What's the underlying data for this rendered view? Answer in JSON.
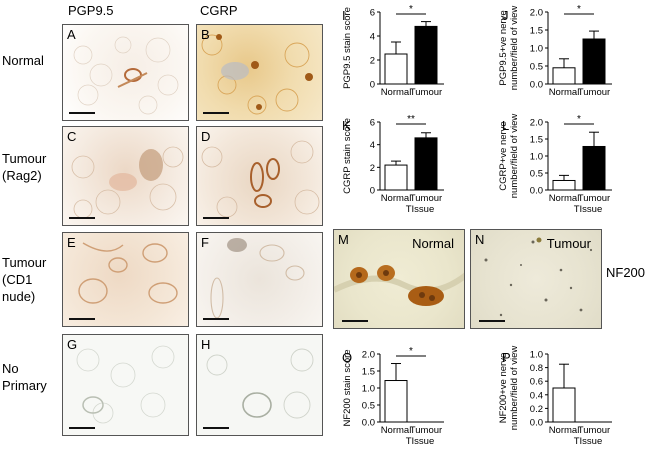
{
  "columns": {
    "pgp": "PGP9.5",
    "cgrp": "CGRP"
  },
  "rows": {
    "normal": "Normal",
    "tumour_rag2": [
      "Tumour",
      "(Rag2)"
    ],
    "tumour_cd1": [
      "Tumour",
      "(CD1",
      "nude)"
    ],
    "no_primary": [
      "No",
      "Primary"
    ]
  },
  "micro_panels": {
    "A": "A",
    "B": "B",
    "C": "C",
    "D": "D",
    "E": "E",
    "F": "F",
    "G": "G",
    "H": "H",
    "M": {
      "letter": "M",
      "label": "Normal"
    },
    "N": {
      "letter": "N",
      "label": "Tumour"
    }
  },
  "nf200_label": "NF200",
  "colors": {
    "bar_normal": "#ffffff",
    "bar_tumour": "#000000",
    "stain": "#c8862e",
    "dab_dark": "#7a3e10"
  },
  "chart_data": [
    {
      "id": "I",
      "type": "bar",
      "categories": [
        "Normal",
        "Tumour"
      ],
      "values": [
        2.5,
        4.8
      ],
      "errors": [
        1.0,
        0.4
      ],
      "ylabel": "PGP9.5 stain score",
      "xlabel": "",
      "ylim": [
        0,
        6
      ],
      "yticks": [
        "0",
        "2",
        "4",
        "6"
      ],
      "significance": "*"
    },
    {
      "id": "J",
      "type": "bar",
      "categories": [
        "Normal",
        "Tumour"
      ],
      "values": [
        0.45,
        1.25
      ],
      "errors": [
        0.25,
        0.22
      ],
      "ylabel": [
        "PGP9.5+ve nerve",
        "number/field of view"
      ],
      "xlabel": "",
      "ylim": [
        0,
        2.0
      ],
      "yticks": [
        "0.0",
        "0.5",
        "1.0",
        "1.5",
        "2.0"
      ],
      "significance": "*"
    },
    {
      "id": "K",
      "type": "bar",
      "categories": [
        "Normal",
        "Tumour"
      ],
      "values": [
        2.2,
        4.6
      ],
      "errors": [
        0.35,
        0.45
      ],
      "ylabel": "CGRP stain score",
      "xlabel": "TIssue",
      "ylim": [
        0,
        6
      ],
      "yticks": [
        "0",
        "2",
        "4",
        "6"
      ],
      "significance": "**"
    },
    {
      "id": "L",
      "type": "bar",
      "categories": [
        "Normal",
        "Tumour"
      ],
      "values": [
        0.28,
        1.28
      ],
      "errors": [
        0.15,
        0.42
      ],
      "ylabel": [
        "CGRP+ve nerve",
        "number/field of view"
      ],
      "xlabel": "TIssue",
      "ylim": [
        0,
        2.0
      ],
      "yticks": [
        "0.0",
        "0.5",
        "1.0",
        "1.5",
        "2.0"
      ],
      "significance": "*"
    },
    {
      "id": "O",
      "type": "bar",
      "categories": [
        "Normal",
        "Tumour"
      ],
      "values": [
        1.22,
        0.0
      ],
      "errors": [
        0.5,
        0.0
      ],
      "ylabel": "NF200 stain score",
      "xlabel": "TIssue",
      "ylim": [
        0,
        2.0
      ],
      "yticks": [
        "0.0",
        "0.5",
        "1.0",
        "1.5",
        "2.0"
      ],
      "significance": "*"
    },
    {
      "id": "P",
      "type": "bar",
      "categories": [
        "Normal",
        "Tumour"
      ],
      "values": [
        0.5,
        0.0
      ],
      "errors": [
        0.35,
        0.0
      ],
      "ylabel": [
        "NF200+ve nerve",
        "number/field of view"
      ],
      "xlabel": "TIssue",
      "ylim": [
        0,
        1.0
      ],
      "yticks": [
        "0.0",
        "0.2",
        "0.4",
        "0.6",
        "0.8",
        "1.0"
      ],
      "significance": ""
    }
  ]
}
